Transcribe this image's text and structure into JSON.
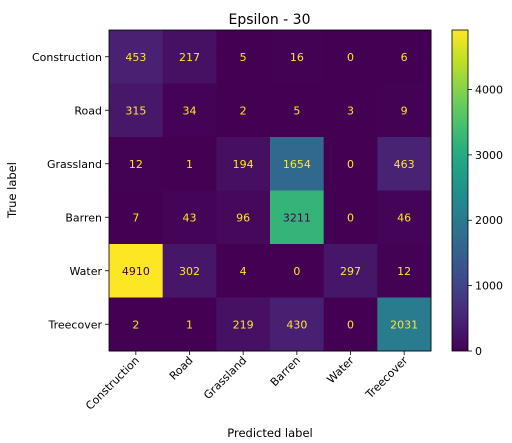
{
  "chart_data": {
    "type": "heatmap",
    "title": "Epsilon - 30",
    "xlabel": "Predicted label",
    "ylabel": "True label",
    "categories": [
      "Construction",
      "Road",
      "Grassland",
      "Barren",
      "Water",
      "Treecover"
    ],
    "matrix": [
      [
        453,
        217,
        5,
        16,
        0,
        6
      ],
      [
        315,
        34,
        2,
        5,
        3,
        9
      ],
      [
        12,
        1,
        194,
        1654,
        0,
        463
      ],
      [
        7,
        43,
        96,
        3211,
        0,
        46
      ],
      [
        4910,
        302,
        4,
        0,
        297,
        12
      ],
      [
        2,
        1,
        219,
        430,
        0,
        2031
      ]
    ],
    "colorbar": {
      "colormap": "viridis",
      "min": 0,
      "max": 4910,
      "ticks": [
        0,
        1000,
        2000,
        3000,
        4000
      ]
    },
    "grid": false
  }
}
